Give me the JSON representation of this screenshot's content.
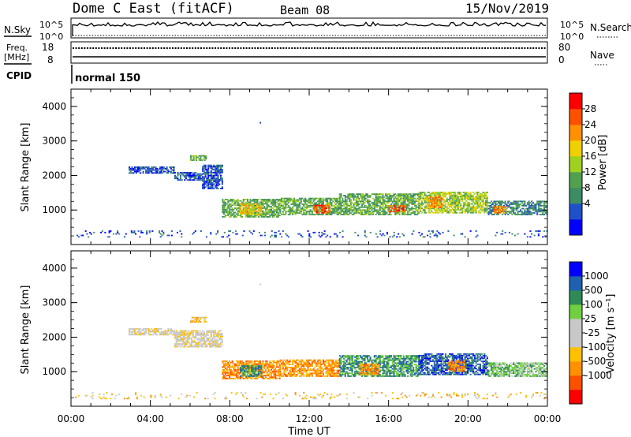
{
  "header": {
    "station": "Dome C East (fitACF)",
    "beam": "Beam 08",
    "date": "15/Nov/2019"
  },
  "top_panels": {
    "nsky_label": "N.Sky",
    "nsky_ticks": [
      "10^5",
      "10^0"
    ],
    "nsearch_label": "N.Search",
    "nsearch_ticks": [
      "10^5",
      "10^0"
    ],
    "freq_label": "Freq.",
    "freq_unit": "[MHz]",
    "freq_ticks": [
      "18",
      "8"
    ],
    "nave_label": "Nave",
    "nave_ticks": [
      "80",
      "0"
    ],
    "cpid_label": "CPID",
    "cpid_value": "normal 150"
  },
  "chart_data": [
    {
      "type": "heatmap",
      "name": "power-panel",
      "ylabel": "Slant Range [km]",
      "yticks": [
        "4000",
        "3000",
        "2000",
        "1000"
      ],
      "ylim": [
        0,
        4500
      ],
      "xlim": [
        0,
        24
      ],
      "colorbar": {
        "label": "Power [dB]",
        "ticks": [
          "28",
          "24",
          "20",
          "16",
          "12",
          "8",
          "4"
        ],
        "colors": [
          "#0000ff",
          "#2050c8",
          "#3c8c64",
          "#50a050",
          "#a0d020",
          "#f0d000",
          "#ff9000",
          "#ff5000",
          "#ff0000"
        ]
      },
      "echo_regions": [
        {
          "t0": 2.9,
          "t1": 5.2,
          "r0": 2050,
          "r1": 2250,
          "cls": 1
        },
        {
          "t0": 5.2,
          "t1": 6.6,
          "r0": 1850,
          "r1": 2100,
          "cls": 1
        },
        {
          "t0": 6.0,
          "t1": 6.8,
          "r0": 2420,
          "r1": 2580,
          "cls": 3
        },
        {
          "t0": 6.6,
          "t1": 7.6,
          "r0": 1600,
          "r1": 2300,
          "cls": 1
        },
        {
          "t0": 7.6,
          "t1": 10.5,
          "r0": 780,
          "r1": 1300,
          "cls": 3
        },
        {
          "t0": 8.5,
          "t1": 9.6,
          "r0": 850,
          "r1": 1150,
          "cls": 5
        },
        {
          "t0": 10.5,
          "t1": 13.5,
          "r0": 850,
          "r1": 1350,
          "cls": 3
        },
        {
          "t0": 12.2,
          "t1": 13.0,
          "r0": 900,
          "r1": 1120,
          "cls": 7
        },
        {
          "t0": 13.5,
          "t1": 17.5,
          "r0": 850,
          "r1": 1450,
          "cls": 3
        },
        {
          "t0": 16.0,
          "t1": 16.8,
          "r0": 930,
          "r1": 1130,
          "cls": 7
        },
        {
          "t0": 17.5,
          "t1": 21.0,
          "r0": 900,
          "r1": 1500,
          "cls": 4
        },
        {
          "t0": 18.0,
          "t1": 18.7,
          "r0": 1050,
          "r1": 1350,
          "cls": 6
        },
        {
          "t0": 21.0,
          "t1": 24.0,
          "r0": 850,
          "r1": 1250,
          "cls": 2
        },
        {
          "t0": 21.3,
          "t1": 21.9,
          "r0": 900,
          "r1": 1100,
          "cls": 6
        },
        {
          "t0": 0.0,
          "t1": 24.0,
          "r0": 200,
          "r1": 400,
          "cls": 1
        }
      ]
    },
    {
      "type": "heatmap",
      "name": "velocity-panel",
      "ylabel": "Slant Range [km]",
      "yticks": [
        "4000",
        "3000",
        "2000",
        "1000"
      ],
      "ylim": [
        0,
        4500
      ],
      "xlim": [
        0,
        24
      ],
      "xticks": [
        "00:00",
        "04:00",
        "08:00",
        "12:00",
        "16:00",
        "20:00",
        "00:00"
      ],
      "xlabel": "Time UT",
      "colorbar": {
        "label": "Velocity [m s⁻¹]",
        "ticks": [
          "1000",
          "500",
          "100",
          "25",
          "-25",
          "-100",
          "-500",
          "-1000"
        ],
        "colors": [
          "#ff0000",
          "#ff5000",
          "#ff9000",
          "#ffc000",
          "#c8c8c8",
          "#c8c8c8",
          "#70d040",
          "#2e8b57",
          "#2060b0",
          "#0000ff"
        ]
      },
      "echo_regions": [
        {
          "t0": 2.9,
          "t1": 5.2,
          "r0": 2050,
          "r1": 2250,
          "cls": 4
        },
        {
          "t0": 5.2,
          "t1": 7.6,
          "r0": 1700,
          "r1": 2200,
          "cls": 4
        },
        {
          "t0": 6.0,
          "t1": 6.8,
          "r0": 2420,
          "r1": 2580,
          "cls": 3
        },
        {
          "t0": 7.6,
          "t1": 10.5,
          "r0": 780,
          "r1": 1300,
          "cls": 2
        },
        {
          "t0": 8.5,
          "t1": 9.6,
          "r0": 850,
          "r1": 1150,
          "cls": 7
        },
        {
          "t0": 10.5,
          "t1": 13.5,
          "r0": 850,
          "r1": 1350,
          "cls": 2
        },
        {
          "t0": 13.5,
          "t1": 17.5,
          "r0": 850,
          "r1": 1450,
          "cls": 7
        },
        {
          "t0": 14.5,
          "t1": 15.5,
          "r0": 900,
          "r1": 1200,
          "cls": 2
        },
        {
          "t0": 17.5,
          "t1": 21.0,
          "r0": 900,
          "r1": 1500,
          "cls": 8
        },
        {
          "t0": 19.0,
          "t1": 19.8,
          "r0": 1000,
          "r1": 1300,
          "cls": 2
        },
        {
          "t0": 21.0,
          "t1": 24.0,
          "r0": 850,
          "r1": 1250,
          "cls": 6
        },
        {
          "t0": 0.0,
          "t1": 24.0,
          "r0": 200,
          "r1": 400,
          "cls": 3
        }
      ]
    }
  ]
}
